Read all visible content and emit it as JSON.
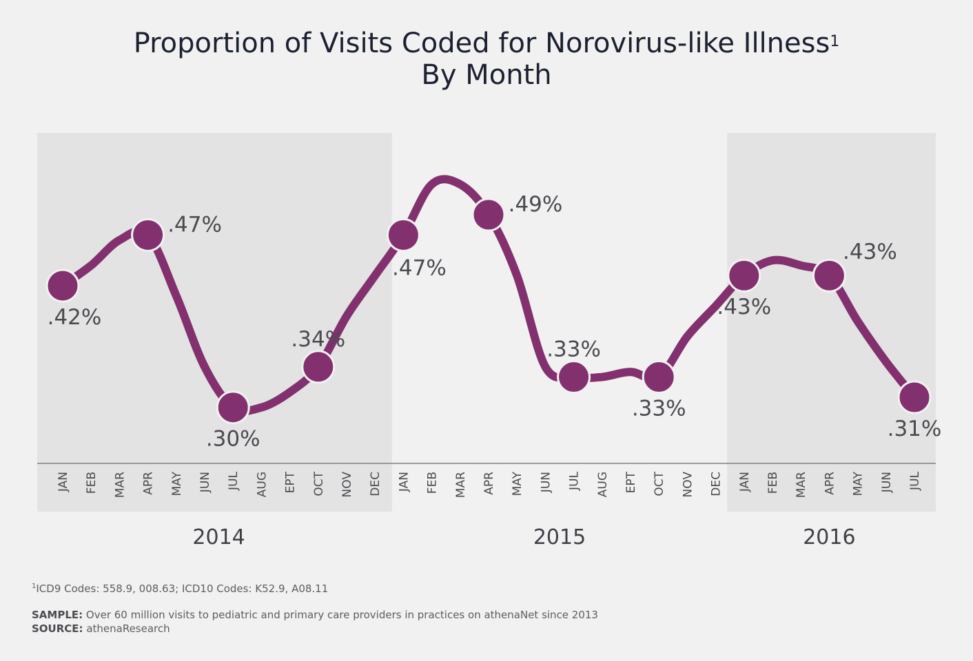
{
  "title": {
    "line1": "Proportion of Visits Coded for Norovirus-like Illness",
    "line1_sup": "1",
    "line2": "By Month"
  },
  "colors": {
    "background": "#f1f1f1",
    "band_shade": "#e3e3e3",
    "line": "#83306f",
    "label_text": "#4a4a50"
  },
  "chart_data": {
    "type": "line",
    "x": [
      "JAN",
      "FEB",
      "MAR",
      "APR",
      "MAY",
      "JUN",
      "JUL",
      "AUG",
      "EPT",
      "OCT",
      "NOV",
      "DEC",
      "JAN",
      "FEB",
      "MAR",
      "APR",
      "MAY",
      "JUN",
      "JUL",
      "AUG",
      "EPT",
      "OCT",
      "NOV",
      "DEC",
      "JAN",
      "FEB",
      "MAR",
      "APR",
      "MAY",
      "JUN",
      "JUL"
    ],
    "years": [
      {
        "label": "2014",
        "start": 0,
        "end": 11,
        "shaded": true
      },
      {
        "label": "2015",
        "start": 12,
        "end": 23,
        "shaded": false
      },
      {
        "label": "2016",
        "start": 24,
        "end": 30,
        "shaded": true
      }
    ],
    "series": [
      {
        "values": [
          0.42,
          0.44,
          0.465,
          0.47,
          0.41,
          0.34,
          0.3,
          0.3,
          0.315,
          0.34,
          0.39,
          0.43,
          0.47,
          0.52,
          0.52,
          0.49,
          0.43,
          0.34,
          0.33,
          0.33,
          0.335,
          0.33,
          0.37,
          0.4,
          0.43,
          0.445,
          0.44,
          0.43,
          0.385,
          0.345,
          0.31
        ],
        "markers": [
          {
            "index": 0,
            "label": ".42%",
            "position": "below"
          },
          {
            "index": 3,
            "label": ".47%",
            "position": "right"
          },
          {
            "index": 6,
            "label": ".30%",
            "position": "below"
          },
          {
            "index": 9,
            "label": ".34%",
            "position": "above"
          },
          {
            "index": 12,
            "label": ".47%",
            "position": "below-right"
          },
          {
            "index": 15,
            "label": ".49%",
            "position": "right"
          },
          {
            "index": 18,
            "label": ".33%",
            "position": "above"
          },
          {
            "index": 21,
            "label": ".33%",
            "position": "below"
          },
          {
            "index": 24,
            "label": ".43%",
            "position": "below"
          },
          {
            "index": 27,
            "label": ".43%",
            "position": "above-right"
          },
          {
            "index": 30,
            "label": ".31%",
            "position": "below"
          }
        ]
      }
    ],
    "grid": false,
    "legend": "none"
  },
  "footnote": {
    "sup": "1",
    "text": "ICD9 Codes: 558.9, 008.63; ICD10 Codes: K52.9, A08.11"
  },
  "sample": {
    "label": "SAMPLE:",
    "text": " Over 60 million visits to pediatric and primary care providers in practices on athenaNet since 2013"
  },
  "source": {
    "label": "SOURCE:",
    "text": " athenaResearch"
  }
}
